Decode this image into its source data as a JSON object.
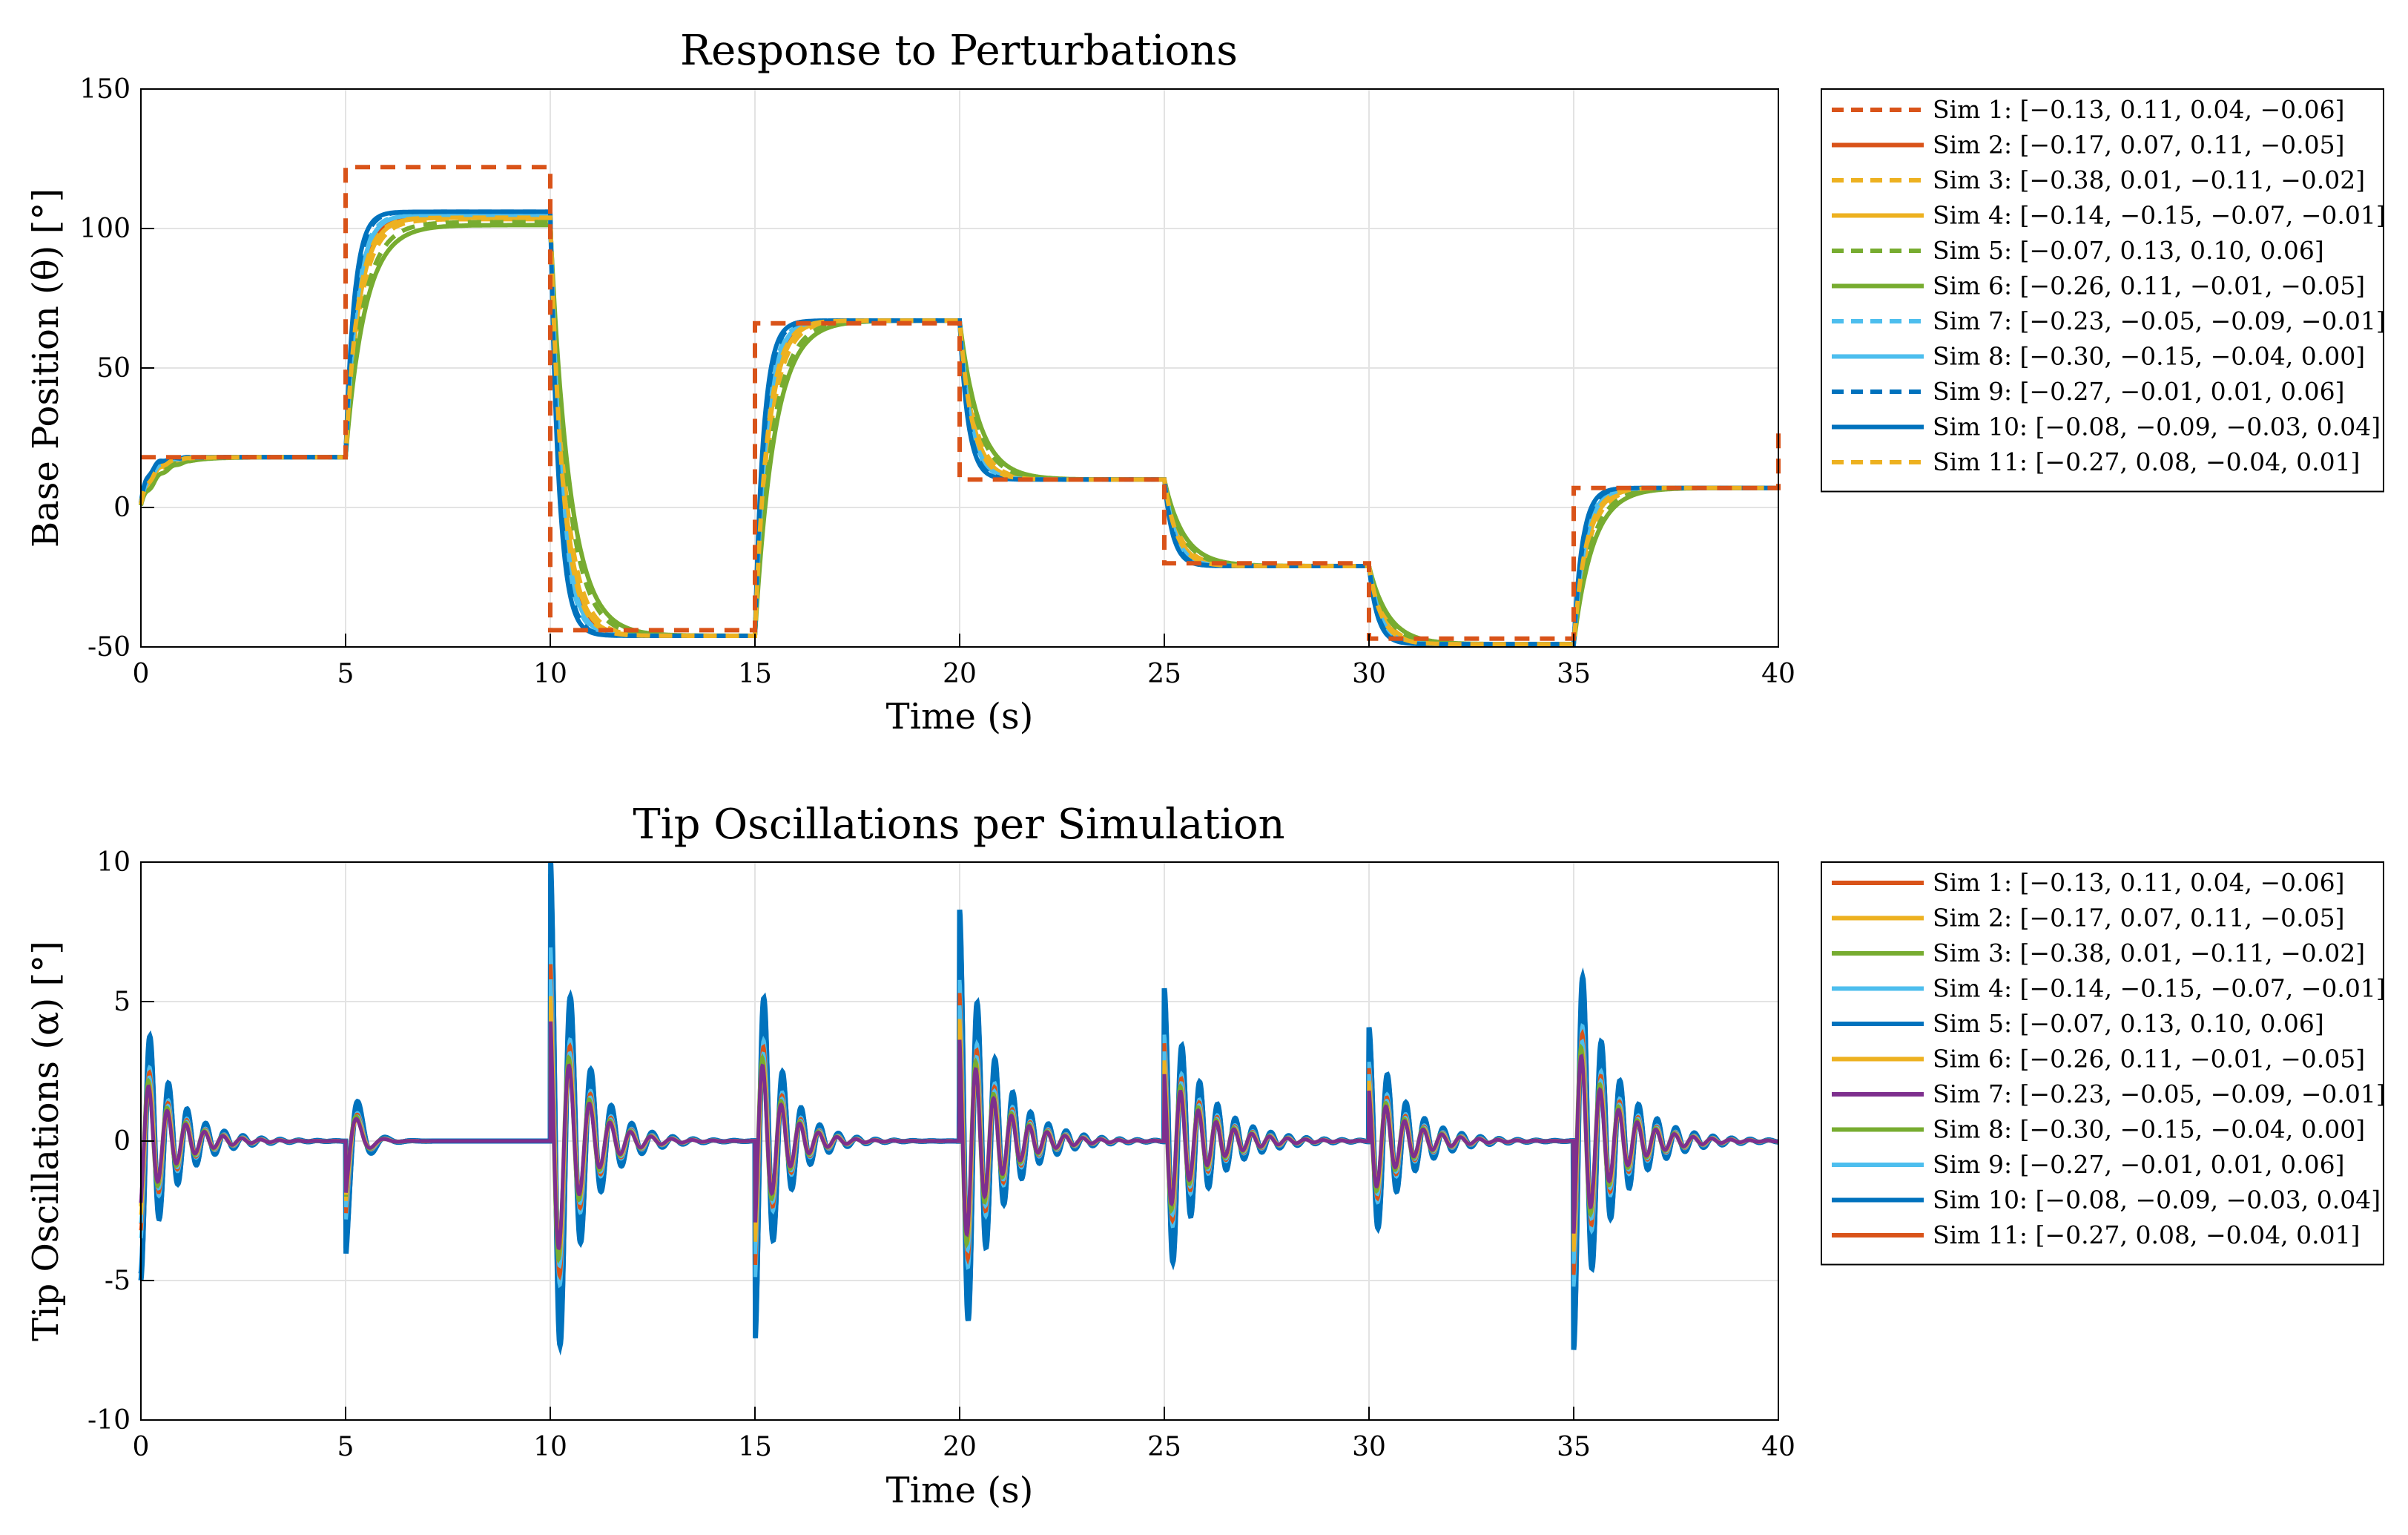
{
  "chart_data": [
    {
      "type": "line",
      "title": "Response to Perturbations",
      "xlabel": "Time (s)",
      "ylabel": "Base Position (θ) [°]",
      "xlim": [
        0,
        40
      ],
      "ylim": [
        -50,
        150
      ],
      "xticks": [
        "0",
        "5",
        "10",
        "15",
        "20",
        "25",
        "30",
        "35",
        "40"
      ],
      "yticks": [
        "-50",
        "0",
        "50",
        "100",
        "150"
      ],
      "grid": true,
      "legend_position": "outside-right",
      "reference": {
        "name": "Sim 1: [−0.13, 0.11, 0.04, −0.06]",
        "style": "dashed",
        "color": "#D95319",
        "x": [
          0,
          5,
          10,
          15,
          20,
          25,
          30,
          35,
          40
        ],
        "y": [
          18,
          122,
          -44,
          66,
          10,
          -20,
          -47,
          7,
          27
        ]
      },
      "step_targets": [
        {
          "start": 0,
          "value": 18
        },
        {
          "start": 5,
          "value": 106
        },
        {
          "start": 10,
          "value": -46
        },
        {
          "start": 15,
          "value": 67
        },
        {
          "start": 20,
          "value": 10
        },
        {
          "start": 25,
          "value": -21
        },
        {
          "start": 30,
          "value": -49
        },
        {
          "start": 35,
          "value": 7
        }
      ],
      "series": [
        {
          "name": "Sim 2: [−0.17, 0.07, 0.11, −0.05]",
          "color": "#D95319",
          "dash": "solid",
          "tau": 0.9,
          "final_scale": 0.985
        },
        {
          "name": "Sim 3: [−0.38, 0.01, −0.11, −0.02]",
          "color": "#EDB120",
          "dash": "dashed",
          "tau": 1.1,
          "final_scale": 0.975
        },
        {
          "name": "Sim 4: [−0.14, −0.15, −0.07, −0.01]",
          "color": "#EDB120",
          "dash": "solid",
          "tau": 1.0,
          "final_scale": 0.98
        },
        {
          "name": "Sim 5: [−0.07, 0.13, 0.10, 0.06]",
          "color": "#77AC30",
          "dash": "dashed",
          "tau": 1.3,
          "final_scale": 0.965
        },
        {
          "name": "Sim 6: [−0.26, 0.11, −0.01, −0.05]",
          "color": "#77AC30",
          "dash": "solid",
          "tau": 1.45,
          "final_scale": 0.955
        },
        {
          "name": "Sim 7: [−0.23, −0.05, −0.09, −0.01]",
          "color": "#4DBEEE",
          "dash": "dashed",
          "tau": 0.8,
          "final_scale": 0.99
        },
        {
          "name": "Sim 8: [−0.30, −0.15, −0.04, 0.00]",
          "color": "#4DBEEE",
          "dash": "solid",
          "tau": 0.85,
          "final_scale": 0.99
        },
        {
          "name": "Sim 9: [−0.27, −0.01, 0.01, 0.06]",
          "color": "#0072BD",
          "dash": "dashed",
          "tau": 0.7,
          "final_scale": 1.0
        },
        {
          "name": "Sim 10: [−0.08, −0.09, −0.03, 0.04]",
          "color": "#0072BD",
          "dash": "solid",
          "tau": 0.65,
          "final_scale": 1.0
        },
        {
          "name": "Sim 11: [−0.27, 0.08, −0.04, 0.01]",
          "color": "#EDB120",
          "dash": "dashed",
          "tau": 0.95,
          "final_scale": 0.98
        }
      ]
    },
    {
      "type": "line",
      "title": "Tip Oscillations per Simulation",
      "xlabel": "Time (s)",
      "ylabel": "Tip Oscillations (α) [°]",
      "xlim": [
        0,
        40
      ],
      "ylim": [
        -10,
        10
      ],
      "xticks": [
        "0",
        "5",
        "10",
        "15",
        "20",
        "25",
        "30",
        "35",
        "40"
      ],
      "yticks": [
        "-10",
        "-5",
        "0",
        "5",
        "10"
      ],
      "grid": true,
      "legend_position": "outside-right",
      "events": [
        {
          "t": 0,
          "amp": -5.0,
          "freq": 2.2,
          "decay": 1.3
        },
        {
          "t": 5,
          "amp": -4.2,
          "freq": 1.5,
          "decay": 3.5
        },
        {
          "t": 10,
          "amp": 10.3,
          "freq": 2.0,
          "decay": 1.4
        },
        {
          "t": 15,
          "amp": -7.3,
          "freq": 2.2,
          "decay": 1.6
        },
        {
          "t": 20,
          "amp": 8.3,
          "freq": 2.3,
          "decay": 1.2
        },
        {
          "t": 25,
          "amp": 5.5,
          "freq": 2.3,
          "decay": 1.1
        },
        {
          "t": 30,
          "amp": 4.1,
          "freq": 2.2,
          "decay": 1.2
        },
        {
          "t": 35,
          "amp": -7.5,
          "freq": 2.2,
          "decay": 1.1
        }
      ],
      "series": [
        {
          "name": "Sim 1: [−0.13, 0.11, 0.04, −0.06]",
          "color": "#D95319",
          "scale": 0.6,
          "phase": 0.2
        },
        {
          "name": "Sim 2: [−0.17, 0.07, 0.11, −0.05]",
          "color": "#EDB120",
          "scale": 0.55,
          "phase": 0.4
        },
        {
          "name": "Sim 3: [−0.38, 0.01, −0.11, −0.02]",
          "color": "#77AC30",
          "scale": 0.5,
          "phase": 0.6
        },
        {
          "name": "Sim 4: [−0.14, −0.15, −0.07, −0.01]",
          "color": "#4DBEEE",
          "scale": 0.6,
          "phase": 0.3
        },
        {
          "name": "Sim 5: [−0.07, 0.13, 0.10, 0.06]",
          "color": "#0072BD",
          "scale": 0.95,
          "phase": 0.0
        },
        {
          "name": "Sim 6: [−0.26, 0.11, −0.01, −0.05]",
          "color": "#EDB120",
          "scale": 0.5,
          "phase": 0.5
        },
        {
          "name": "Sim 7: [−0.23, −0.05, −0.09, −0.01]",
          "color": "#7E2F8E",
          "scale": 0.5,
          "phase": 0.7
        },
        {
          "name": "Sim 8: [−0.30, −0.15, −0.04, 0.00]",
          "color": "#77AC30",
          "scale": 0.55,
          "phase": 0.8
        },
        {
          "name": "Sim 9: [−0.27, −0.01, 0.01, 0.06]",
          "color": "#4DBEEE",
          "scale": 0.7,
          "phase": 0.15
        },
        {
          "name": "Sim 10: [−0.08, −0.09, −0.03, 0.04]",
          "color": "#0072BD",
          "scale": 1.0,
          "phase": 0.05
        },
        {
          "name": "Sim 11: [−0.27, 0.08, −0.04, 0.01]",
          "color": "#D95319",
          "scale": 0.65,
          "phase": 0.25
        }
      ]
    }
  ]
}
